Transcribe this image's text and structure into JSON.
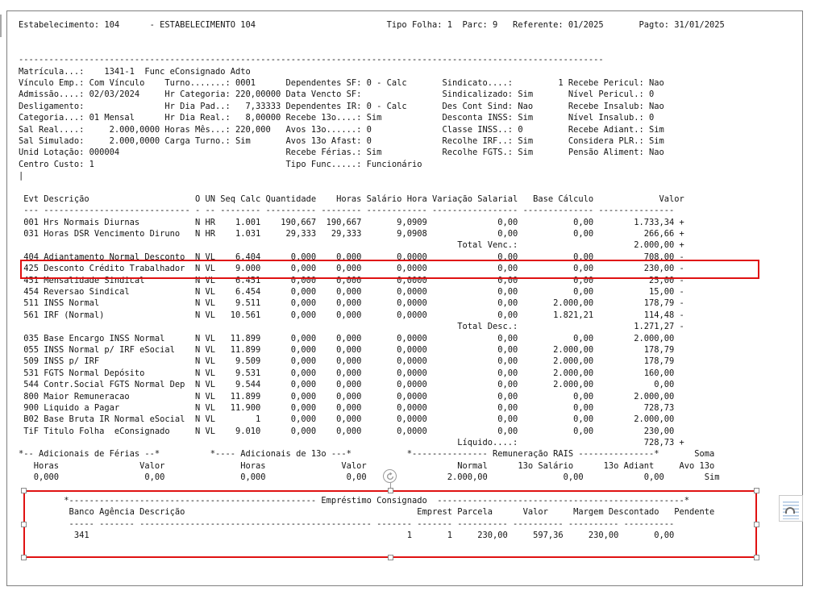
{
  "colors": {
    "annotation_red": "#e01212",
    "frame_border_gray": "#7f7f7f",
    "icon_lines_blue": "#adc6e2"
  },
  "page_header": {
    "estabelecimento": "104",
    "estabelecimento_nome": "ESTABELECIMENTO 104",
    "tipo_folha": "1",
    "parc": "9",
    "referente": "01/2025",
    "pagto": "31/01/2025"
  },
  "employee": {
    "matricula": "1341-1",
    "nome": "Func eConsignado Adto",
    "vinculo_emp": "Com Vínculo",
    "turno": "0001",
    "dependentes_sf": "0 - Calc",
    "sindicato": "1",
    "recebe_pericul": "Nao",
    "admissao": "02/03/2024",
    "hr_categoria": "220,00000",
    "data_vencto_sf": "",
    "sindicalizado": "Sim",
    "nivel_pericul": "0",
    "desligamento": "",
    "hr_dia_pad": "7,33333",
    "dependentes_ir": "0 - Calc",
    "des_cont_sind": "Nao",
    "recebe_insalub": "Nao",
    "categoria": "01 Mensal",
    "hr_dia_real": "8,00000",
    "recebe_13o": "Sim",
    "desconta_inss": "Sim",
    "nivel_insalub": "0",
    "sal_real": "2.000,0000",
    "horas_mes": "220,000",
    "avos_13o": "0",
    "classe_inss": "0",
    "recebe_adiant": "Sim",
    "sal_simulado": "2.000,0000",
    "carga_turno": "Sim",
    "avos_13o_afast": "0",
    "recolhe_irf": "Sim",
    "considera_plr": "Sim",
    "unid_lotacao": "000004",
    "recebe_ferias": "Sim",
    "recolhe_fgts": "Sim",
    "pensao_aliment": "Nao",
    "centro_custo": "1",
    "tipo_func": "Funcionário"
  },
  "events_table": {
    "columns": [
      "Evt",
      "Descrição",
      "O",
      "UN",
      "Seq Calc",
      "Quantidade",
      "Horas",
      "Salário Hora",
      "Variação Salarial",
      "Base Cálculo",
      "Valor"
    ],
    "rows": [
      [
        "001",
        "Hrs Normais Diurnas",
        "N",
        "HR",
        "1.001",
        "190,667",
        "190,667",
        "9,0909",
        "0,00",
        "0,00",
        "1.733,34 +"
      ],
      [
        "031",
        "Horas DSR Vencimento Diruno",
        "N",
        "HR",
        "1.031",
        "29,333",
        "29,333",
        "9,0908",
        "0,00",
        "0,00",
        "266,66 +"
      ],
      [
        "404",
        "Adiantamento Normal Desconto",
        "N",
        "VL",
        "6.404",
        "0,000",
        "0,000",
        "0,0000",
        "0,00",
        "0,00",
        "708,00 -"
      ],
      [
        "425",
        "Desconto Crédito Trabalhador",
        "N",
        "VL",
        "9.000",
        "0,000",
        "0,000",
        "0,0000",
        "0,00",
        "0,00",
        "230,00 -"
      ],
      [
        "451",
        "Mensalidade Sindical",
        "N",
        "VL",
        "6.451",
        "0,000",
        "0,000",
        "0,0000",
        "0,00",
        "0,00",
        "25,00 -"
      ],
      [
        "454",
        "Reversao Sindical",
        "N",
        "VL",
        "6.454",
        "0,000",
        "0,000",
        "0,0000",
        "0,00",
        "0,00",
        "15,00 -"
      ],
      [
        "511",
        "INSS Normal",
        "N",
        "VL",
        "9.511",
        "0,000",
        "0,000",
        "0,0000",
        "0,00",
        "2.000,00",
        "178,79 -"
      ],
      [
        "561",
        "IRF (Normal)",
        "N",
        "VL",
        "10.561",
        "0,000",
        "0,000",
        "0,0000",
        "0,00",
        "1.821,21",
        "114,48 -"
      ],
      [
        "035",
        "Base Encargo INSS Normal",
        "N",
        "VL",
        "11.899",
        "0,000",
        "0,000",
        "0,0000",
        "0,00",
        "0,00",
        "2.000,00"
      ],
      [
        "055",
        "INSS Normal p/ IRF eSocial",
        "N",
        "VL",
        "11.899",
        "0,000",
        "0,000",
        "0,0000",
        "0,00",
        "2.000,00",
        "178,79"
      ],
      [
        "509",
        "INSS p/ IRF",
        "N",
        "VL",
        "9.509",
        "0,000",
        "0,000",
        "0,0000",
        "0,00",
        "2.000,00",
        "178,79"
      ],
      [
        "531",
        "FGTS Normal Depósito",
        "N",
        "VL",
        "9.531",
        "0,000",
        "0,000",
        "0,0000",
        "0,00",
        "2.000,00",
        "160,00"
      ],
      [
        "544",
        "Contr.Social FGTS Normal Dep",
        "N",
        "VL",
        "9.544",
        "0,000",
        "0,000",
        "0,0000",
        "0,00",
        "2.000,00",
        "0,00"
      ],
      [
        "800",
        "Maior Remuneracao",
        "N",
        "VL",
        "11.899",
        "0,000",
        "0,000",
        "0,0000",
        "0,00",
        "0,00",
        "2.000,00"
      ],
      [
        "900",
        "Liquido a Pagar",
        "N",
        "VL",
        "11.900",
        "0,000",
        "0,000",
        "0,0000",
        "0,00",
        "0,00",
        "728,73"
      ],
      [
        "B02",
        "Base Bruta IR Normal eSocial",
        "N",
        "VL",
        "1",
        "0,000",
        "0,000",
        "0,0000",
        "0,00",
        "0,00",
        "2.000,00"
      ],
      [
        "TiF",
        "Titulo Folha  eConsignado",
        "N",
        "VL",
        "9.010",
        "0,000",
        "0,000",
        "0,0000",
        "0,00",
        "0,00",
        "230,00"
      ]
    ],
    "totals": [
      {
        "label": "Total Venc.:",
        "value": "2.000,00 +"
      },
      {
        "label": "Total Desc.:",
        "value": "1.271,27 -"
      },
      {
        "label": "Líquido....:",
        "value": "728,73 +"
      }
    ]
  },
  "adicionais_ferias": {
    "title": "*-- Adicionais de Férias --*",
    "horas": "0,000",
    "valor": "0,00"
  },
  "adicionais_13o": {
    "title": "*---- Adicionais de 13o ---*",
    "horas": "0,000",
    "valor": "0,00"
  },
  "remuneracao_rais": {
    "title": "Remuneração RAIS",
    "normal": "2.000,00",
    "salario_13o": "0,00",
    "adiant_13o": "0,00"
  },
  "soma": {
    "label": "Soma",
    "avo_13o_label": "Avo 13o",
    "avo_13o": "Sim"
  },
  "emprestimo_consignado": {
    "title": "Empréstimo Consignado",
    "columns": [
      "Banco",
      "Agência",
      "Descrição",
      "Emprest",
      "Parcela",
      "Valor",
      "Margem",
      "Descontado",
      "Pendente"
    ],
    "rows": [
      [
        "341",
        "",
        "",
        "1",
        "1",
        "230,00",
        "597,36",
        "230,00",
        "0,00"
      ]
    ]
  },
  "annotations": {
    "highlighted_row_evt": "425",
    "selected_region": "Empréstimo Consignado"
  },
  "report": {
    "lines": [
      "Estabelecimento: 104      - ESTABELECIMENTO 104                          Tipo Folha: 1  Parc: 9   Referente: 01/2025       Pagto: 31/01/2025",
      "",
      "",
      "--------------------------------------------------------------------------------------------------------------------",
      "Matrícula...:    1341-1  Func eConsignado Adto",
      "Vínculo Emp.: Com Vínculo    Turno.......: 0001      Dependentes SF: 0 - Calc       Sindicato....:         1 Recebe Pericul: Nao",
      "Admissão....: 02/03/2024     Hr Categoria: 220,00000 Data Vencto SF:                Sindicalizado: Sim       Nível Pericul.: 0",
      "Desligamento:                Hr Dia Pad..:   7,33333 Dependentes IR: 0 - Calc       Des Cont Sind: Nao       Recebe Insalub: Nao",
      "Categoria...: 01 Mensal      Hr Dia Real.:   8,00000 Recebe 13o....: Sim            Desconta INSS: Sim       Nível Insalub.: 0",
      "Sal Real....:     2.000,0000 Horas Mês...: 220,000   Avos 13o......: 0              Classe INSS..: 0         Recebe Adiant.: Sim",
      "Sal Simulado:     2.000,0000 Carga Turno.: Sim       Avos 13o Afast: 0              Recolhe IRF..: Sim       Considera PLR.: Sim",
      "Unid Lotação: 000004                                 Recebe Férias.: Sim            Recolhe FGTS.: Sim       Pensão Aliment: Nao",
      "Centro Custo: 1                                      Tipo Func.....: Funcionário",
      "|",
      "",
      " Evt Descrição                     O UN Seq Calc Quantidade    Horas Salário Hora Variação Salarial   Base Cálculo             Valor",
      " --- ----------------------------- - -- -------- ---------- -------- ------------ ----------------- -------------- ---------------",
      " 001 Hrs Normais Diurnas           N HR    1.001    190,667  190,667       9,0909              0,00           0,00        1.733,34 +",
      " 031 Horas DSR Vencimento Diruno   N HR    1.031     29,333   29,333       9,0908              0,00           0,00          266,66 +",
      "                                                                                       Total Venc.:                       2.000,00 +",
      " 404 Adiantamento Normal Desconto  N VL    6.404      0,000    0,000       0,0000              0,00           0,00          708,00 -",
      " 425 Desconto Crédito Trabalhador  N VL    9.000      0,000    0,000       0,0000              0,00           0,00          230,00 -",
      " 451 Mensalidade Sindical          N VL    6.451      0,000    0,000       0,0000              0,00           0,00           25,00 -",
      " 454 Reversao Sindical             N VL    6.454      0,000    0,000       0,0000              0,00           0,00           15,00 -",
      " 511 INSS Normal                   N VL    9.511      0,000    0,000       0,0000              0,00       2.000,00          178,79 -",
      " 561 IRF (Normal)                  N VL   10.561      0,000    0,000       0,0000              0,00       1.821,21          114,48 -",
      "                                                                                       Total Desc.:                       1.271,27 -",
      " 035 Base Encargo INSS Normal      N VL   11.899      0,000    0,000       0,0000              0,00           0,00        2.000,00",
      " 055 INSS Normal p/ IRF eSocial    N VL   11.899      0,000    0,000       0,0000              0,00       2.000,00          178,79",
      " 509 INSS p/ IRF                   N VL    9.509      0,000    0,000       0,0000              0,00       2.000,00          178,79",
      " 531 FGTS Normal Depósito          N VL    9.531      0,000    0,000       0,0000              0,00       2.000,00          160,00",
      " 544 Contr.Social FGTS Normal Dep  N VL    9.544      0,000    0,000       0,0000              0,00       2.000,00            0,00",
      " 800 Maior Remuneracao             N VL   11.899      0,000    0,000       0,0000              0,00           0,00        2.000,00",
      " 900 Liquido a Pagar               N VL   11.900      0,000    0,000       0,0000              0,00           0,00          728,73",
      " B02 Base Bruta IR Normal eSocial  N VL        1      0,000    0,000       0,0000              0,00           0,00        2.000,00",
      " TiF Titulo Folha  eConsignado     N VL    9.010      0,000    0,000       0,0000              0,00           0,00          230,00",
      "                                                                                       Líquido....:                         728,73 +",
      "*-- Adicionais de Férias --*          *---- Adicionais de 13o ---*           *--------------- Remuneração RAIS ---------------*       Soma",
      "   Horas                Valor               Horas               Valor                  Normal      13o Salário      13o Adiant     Avo 13o",
      "   0,000                 0,00               0,000                0,00                2.000,00               0,00            0,00        Sim",
      "",
      "         *------------------------------------------------- Empréstimo Consignado  -------------------------------------------------*",
      "          Banco Agência Descrição                                              Emprest Parcela      Valor     Margem Descontado   Pendente",
      "          ----- ------- ---------------------------------------------- ------- ------- ---------- ---------- ---------- ----------",
      "           341                                                               1       1     230,00     597,36     230,00       0,00"
    ]
  }
}
